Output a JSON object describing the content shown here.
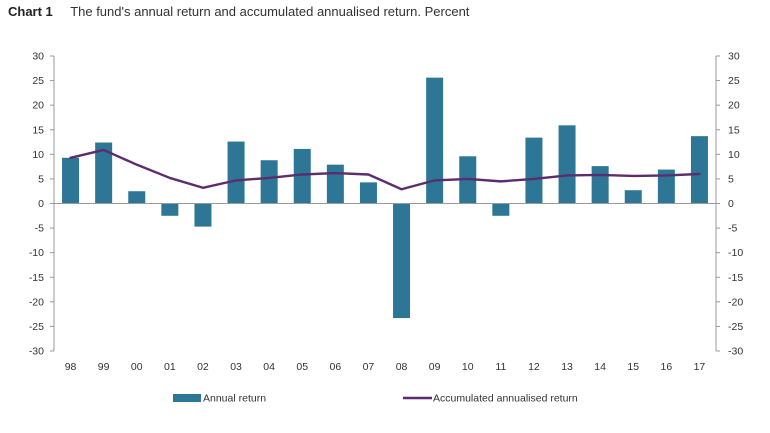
{
  "header": {
    "chart_label": "Chart 1",
    "title": "The fund's annual return and accumulated annualised return. Percent"
  },
  "chart_data": {
    "type": "bar",
    "categories": [
      "98",
      "99",
      "00",
      "01",
      "02",
      "03",
      "04",
      "05",
      "06",
      "07",
      "08",
      "09",
      "10",
      "11",
      "12",
      "13",
      "14",
      "15",
      "16",
      "17"
    ],
    "series": [
      {
        "name": "Annual return",
        "kind": "bar",
        "color": "#2e7696",
        "values": [
          9.3,
          12.4,
          2.5,
          -2.5,
          -4.7,
          12.6,
          8.8,
          11.1,
          7.9,
          4.3,
          -23.3,
          25.6,
          9.6,
          -2.5,
          13.4,
          15.9,
          7.6,
          2.7,
          6.9,
          13.7
        ]
      },
      {
        "name": "Accumulated annualised return",
        "kind": "line",
        "color": "#5c2d6e",
        "values": [
          9.3,
          10.9,
          7.9,
          5.2,
          3.2,
          4.7,
          5.2,
          5.9,
          6.2,
          5.9,
          2.9,
          4.7,
          5.0,
          4.5,
          5.0,
          5.7,
          5.8,
          5.6,
          5.7,
          6.0
        ]
      }
    ],
    "yticks": [
      30,
      25,
      20,
      15,
      10,
      5,
      0,
      -5,
      -10,
      -15,
      -20,
      -25,
      -30
    ],
    "ylim": [
      -30,
      30
    ],
    "xlabel": "",
    "ylabel": "",
    "grid": false,
    "legend_position": "bottom"
  }
}
